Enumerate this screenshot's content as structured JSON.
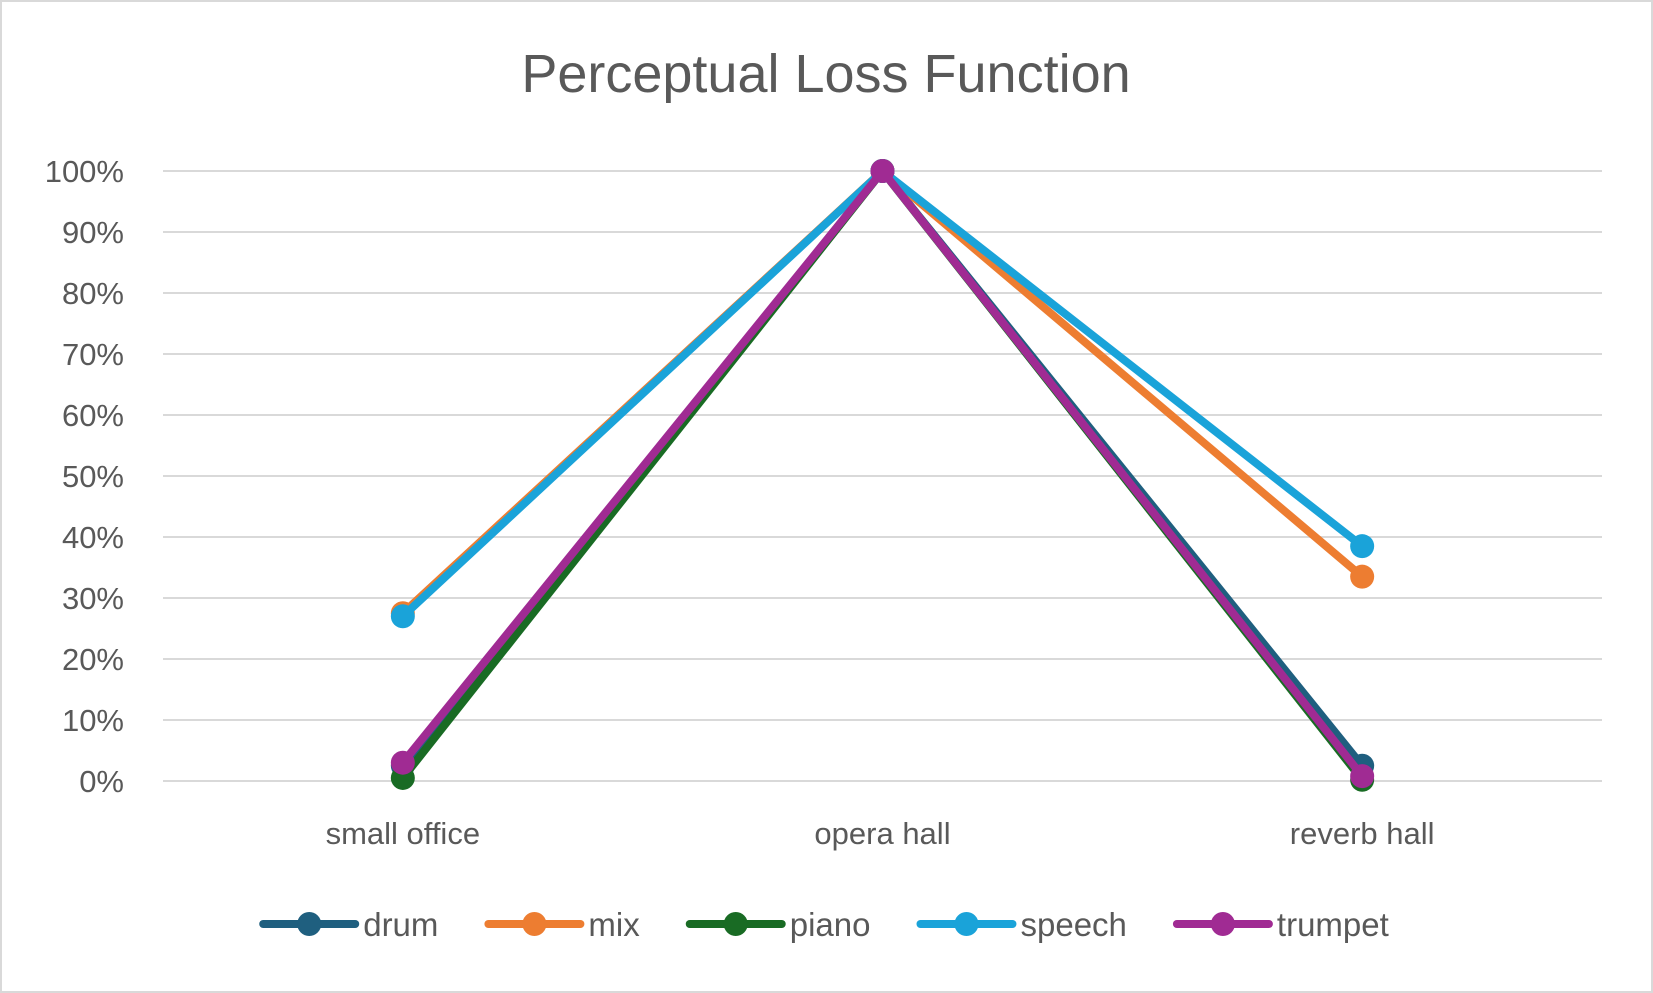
{
  "chart_data": {
    "type": "line",
    "title": "Perceptual Loss Function",
    "xlabel": "",
    "ylabel": "",
    "categories": [
      "small office",
      "opera hall",
      "reverb hall"
    ],
    "ylim": [
      0,
      100
    ],
    "y_ticks": [
      "0%",
      "10%",
      "20%",
      "30%",
      "40%",
      "50%",
      "60%",
      "70%",
      "80%",
      "90%",
      "100%"
    ],
    "grid": true,
    "legend_position": "bottom",
    "series": [
      {
        "name": "drum",
        "color": "#1f5f7f",
        "values": [
          2.5,
          100,
          2.5
        ]
      },
      {
        "name": "mix",
        "color": "#ed7d31",
        "values": [
          27.5,
          100,
          33.5
        ]
      },
      {
        "name": "piano",
        "color": "#196b24",
        "values": [
          0.5,
          100,
          0.2
        ]
      },
      {
        "name": "speech",
        "color": "#1aa3d9",
        "values": [
          27,
          100,
          38.5
        ]
      },
      {
        "name": "trumpet",
        "color": "#a02b93",
        "values": [
          3,
          100,
          0.8
        ]
      }
    ]
  }
}
